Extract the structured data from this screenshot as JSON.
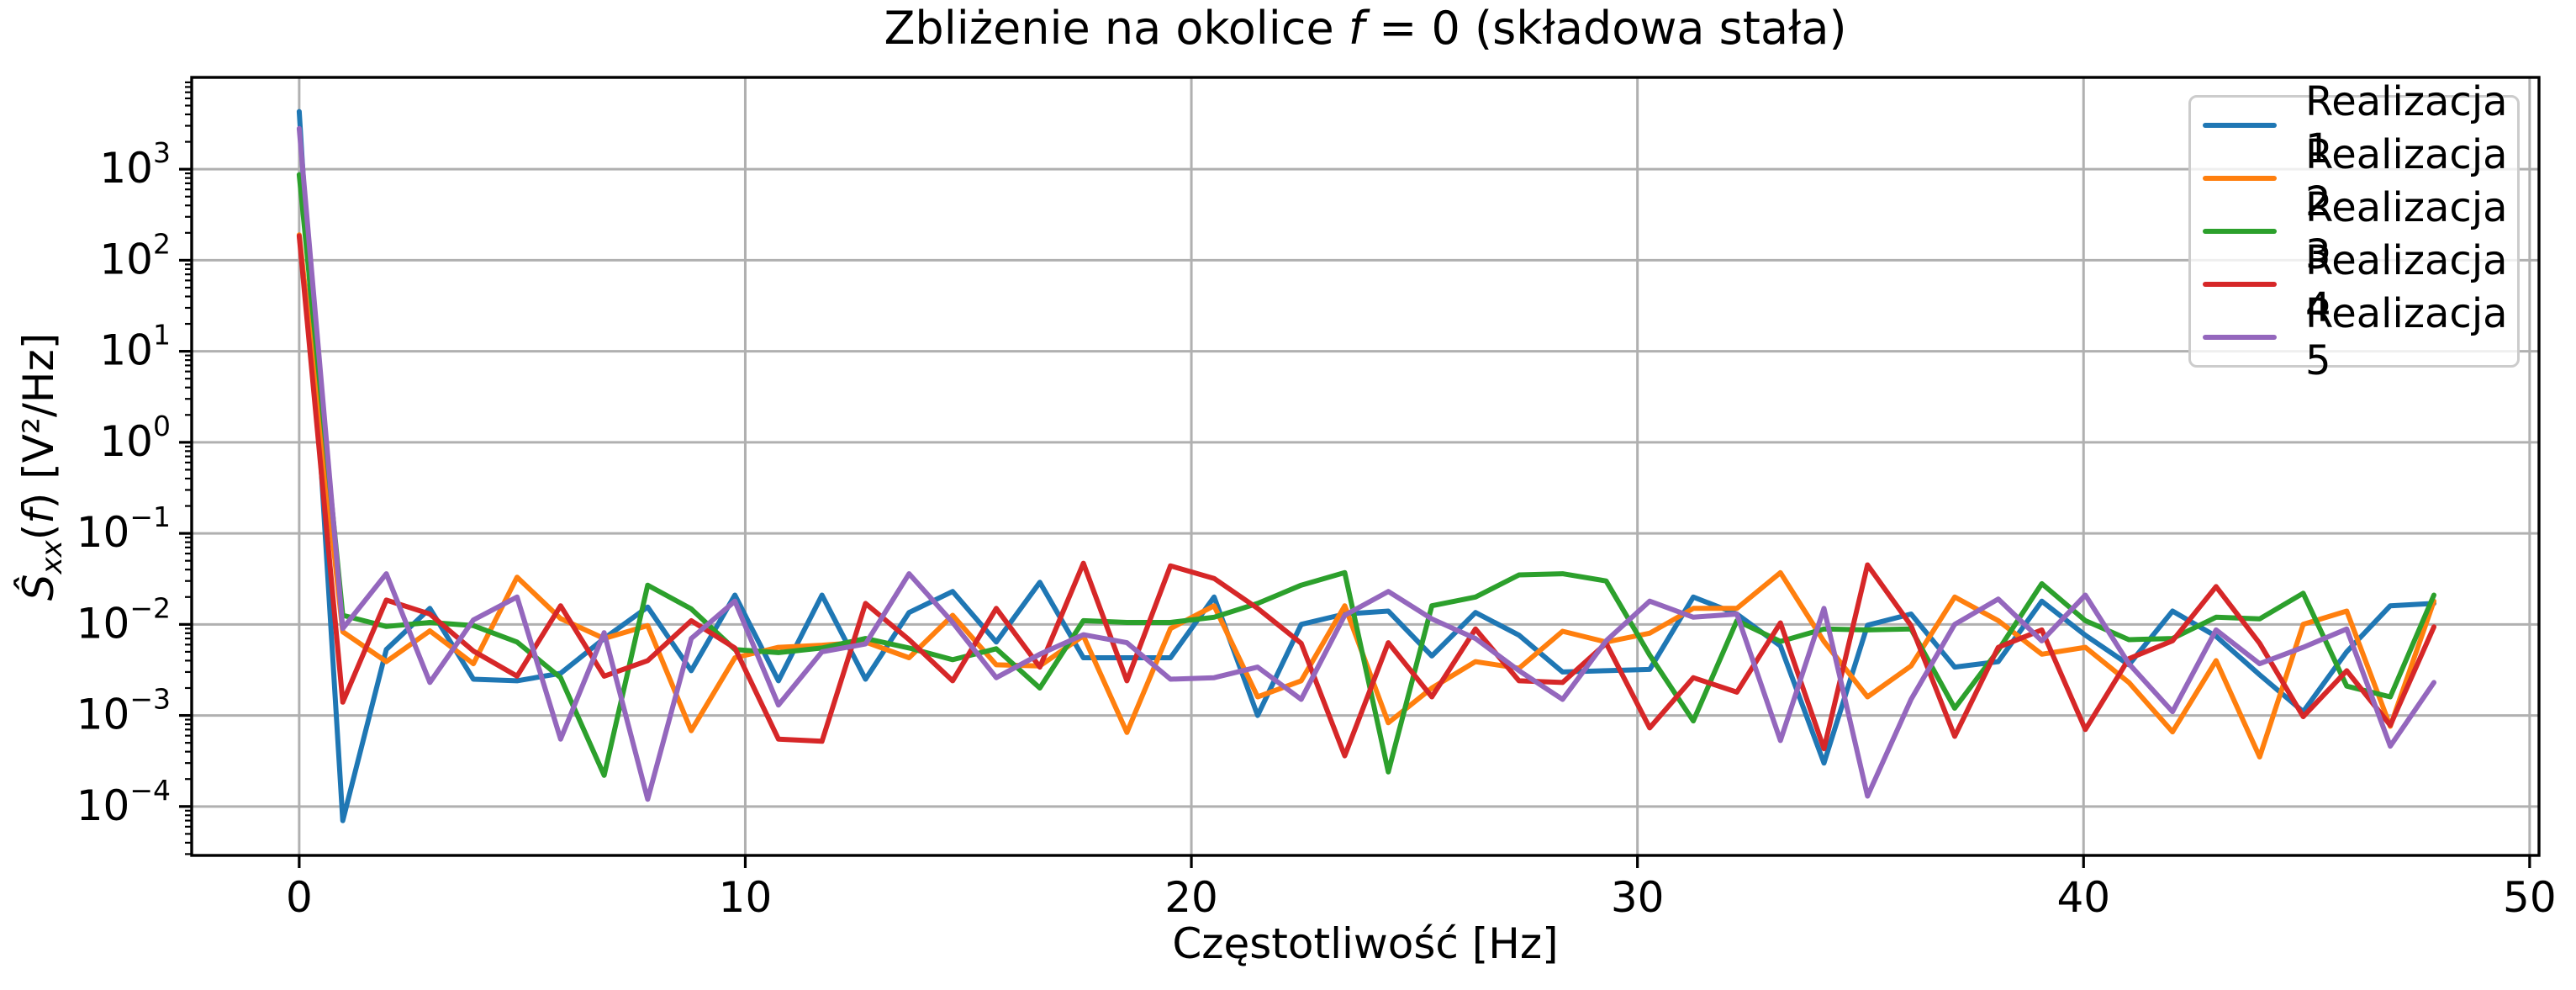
{
  "text": {
    "title_parts": [
      {
        "text": "Zbliżenie na okolice ",
        "italic": false
      },
      {
        "text": "f",
        "italic": true
      },
      {
        "text": " = 0 (składowa stała)",
        "italic": false
      }
    ],
    "xlabel": "Częstotliwość [Hz]",
    "ylabel_parts": [
      {
        "text": "Ŝ",
        "class": "it"
      },
      {
        "text": "xx",
        "class": "it sub"
      },
      {
        "text": "(",
        "class": ""
      },
      {
        "text": "f",
        "class": "it"
      },
      {
        "text": ") [V²/Hz]",
        "class": ""
      }
    ]
  },
  "chart_data": {
    "type": "line",
    "title": "Zbliżenie na okolice f = 0 (składowa stała)",
    "xlabel": "Częstotliwość [Hz]",
    "ylabel": "Ŝxx(f) [V²/Hz]",
    "yscale": "log",
    "grid": true,
    "legend_position": "upper right",
    "xlim": [
      -2.41,
      50.21
    ],
    "ylim": [
      2.9e-05,
      10200
    ],
    "x_ticks": [
      0,
      10,
      20,
      30,
      40,
      50
    ],
    "y_tick_exponents": [
      3,
      2,
      1,
      0,
      -1,
      -2,
      -3,
      -4
    ],
    "x_start": 0,
    "x_step": 0.9766,
    "series": [
      {
        "name": "Realizacja 1",
        "color": "#1f77b4",
        "values": [
          4300,
          7e-05,
          0.0053,
          0.015,
          0.0025,
          0.0024,
          0.0029,
          0.007,
          0.0155,
          0.0031,
          0.021,
          0.0024,
          0.021,
          0.0025,
          0.0135,
          0.023,
          0.0064,
          0.029,
          0.0043,
          0.0043,
          0.0043,
          0.02,
          0.001,
          0.01,
          0.013,
          0.014,
          0.0045,
          0.0135,
          0.0076,
          0.003,
          0.0031,
          0.0032,
          0.02,
          0.013,
          0.0058,
          0.0003,
          0.0098,
          0.013,
          0.0034,
          0.0039,
          0.018,
          0.0076,
          0.0036,
          0.014,
          0.0074,
          0.0028,
          0.0011,
          0.005,
          0.016,
          0.017
        ]
      },
      {
        "name": "Realizacja 2",
        "color": "#ff7f0e",
        "values": [
          190,
          0.0083,
          0.0039,
          0.0085,
          0.0037,
          0.033,
          0.0116,
          0.007,
          0.0097,
          0.00068,
          0.0043,
          0.0056,
          0.0059,
          0.0064,
          0.0043,
          0.0126,
          0.0036,
          0.0035,
          0.0075,
          0.00065,
          0.009,
          0.016,
          0.0016,
          0.0024,
          0.016,
          0.00083,
          0.002,
          0.0039,
          0.0033,
          0.0084,
          0.0064,
          0.008,
          0.015,
          0.015,
          0.037,
          0.0065,
          0.0016,
          0.0035,
          0.02,
          0.011,
          0.0047,
          0.0056,
          0.0023,
          0.00066,
          0.004,
          0.00035,
          0.01,
          0.014,
          0.00076,
          0.018
        ]
      },
      {
        "name": "Realizacja 3",
        "color": "#2ca02c",
        "values": [
          870,
          0.0126,
          0.0095,
          0.0105,
          0.0097,
          0.0064,
          0.0026,
          0.00022,
          0.027,
          0.0148,
          0.0053,
          0.0049,
          0.0055,
          0.007,
          0.0055,
          0.0041,
          0.0054,
          0.002,
          0.011,
          0.0105,
          0.0105,
          0.012,
          0.017,
          0.027,
          0.037,
          0.00024,
          0.016,
          0.02,
          0.035,
          0.036,
          0.03,
          0.0046,
          0.00087,
          0.011,
          0.0065,
          0.0089,
          0.0087,
          0.0089,
          0.0012,
          0.0052,
          0.028,
          0.011,
          0.0068,
          0.007,
          0.012,
          0.0115,
          0.022,
          0.0021,
          0.0016,
          0.021
        ]
      },
      {
        "name": "Realizacja 4",
        "color": "#d62728",
        "values": [
          185,
          0.0014,
          0.0185,
          0.013,
          0.0051,
          0.0027,
          0.016,
          0.0027,
          0.004,
          0.011,
          0.0055,
          0.00055,
          0.00052,
          0.017,
          0.0068,
          0.0024,
          0.015,
          0.0034,
          0.047,
          0.0024,
          0.044,
          0.032,
          0.015,
          0.0062,
          0.00036,
          0.0063,
          0.0016,
          0.0089,
          0.0024,
          0.0023,
          0.0062,
          0.00073,
          0.0026,
          0.0018,
          0.0104,
          0.00043,
          0.045,
          0.0097,
          0.00059,
          0.0056,
          0.0087,
          0.0007,
          0.0042,
          0.0066,
          0.026,
          0.0062,
          0.00097,
          0.0031,
          0.00078,
          0.0094
        ]
      },
      {
        "name": "Realizacja 5",
        "color": "#9467bd",
        "values": [
          2800,
          0.009,
          0.036,
          0.0023,
          0.0112,
          0.02,
          0.00055,
          0.0081,
          0.00012,
          0.007,
          0.018,
          0.0013,
          0.005,
          0.0061,
          0.036,
          0.0105,
          0.0026,
          0.0047,
          0.0077,
          0.0063,
          0.0025,
          0.0026,
          0.0034,
          0.0015,
          0.0126,
          0.023,
          0.0115,
          0.007,
          0.0031,
          0.0015,
          0.0066,
          0.018,
          0.012,
          0.013,
          0.00053,
          0.015,
          0.00013,
          0.0015,
          0.01,
          0.019,
          0.0066,
          0.021,
          0.0037,
          0.0011,
          0.0087,
          0.0037,
          0.0056,
          0.0089,
          0.00046,
          0.0023
        ]
      }
    ]
  }
}
